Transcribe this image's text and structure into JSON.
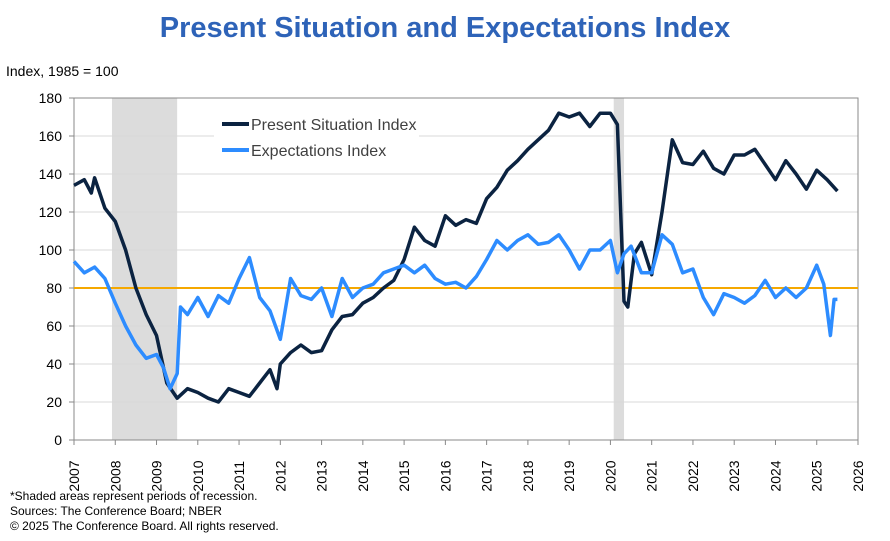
{
  "chart_data": {
    "type": "line",
    "title": "Present Situation and Expectations Index",
    "ylabel": "Index, 1985 = 100",
    "xlabel": "",
    "xlim": [
      2007,
      2026
    ],
    "ylim": [
      0,
      180
    ],
    "yticks": [
      0,
      20,
      40,
      60,
      80,
      100,
      120,
      140,
      160,
      180
    ],
    "xticks": [
      "2007",
      "2008",
      "2009",
      "2010",
      "2011",
      "2012",
      "2013",
      "2014",
      "2015",
      "2016",
      "2017",
      "2018",
      "2019",
      "2020",
      "2021",
      "2022",
      "2023",
      "2024",
      "2025",
      "2026"
    ],
    "grid": true,
    "legend_position": "top-left",
    "reference_line": {
      "value": 80,
      "color": "#f5a800"
    },
    "recessions": [
      [
        2007.92,
        2009.5
      ],
      [
        2020.08,
        2020.33
      ]
    ],
    "series": [
      {
        "name": "Present Situation Index",
        "color": "#0b2341",
        "x": [
          2007.0,
          2007.25,
          2007.42,
          2007.5,
          2007.75,
          2008.0,
          2008.25,
          2008.5,
          2008.75,
          2009.0,
          2009.25,
          2009.5,
          2009.75,
          2010.0,
          2010.25,
          2010.5,
          2010.75,
          2011.0,
          2011.25,
          2011.5,
          2011.75,
          2011.92,
          2012.0,
          2012.25,
          2012.5,
          2012.75,
          2013.0,
          2013.25,
          2013.5,
          2013.75,
          2014.0,
          2014.25,
          2014.5,
          2014.75,
          2015.0,
          2015.25,
          2015.5,
          2015.75,
          2016.0,
          2016.25,
          2016.5,
          2016.75,
          2017.0,
          2017.25,
          2017.5,
          2017.75,
          2018.0,
          2018.25,
          2018.5,
          2018.75,
          2019.0,
          2019.25,
          2019.5,
          2019.75,
          2020.0,
          2020.17,
          2020.33,
          2020.42,
          2020.58,
          2020.75,
          2021.0,
          2021.25,
          2021.5,
          2021.75,
          2022.0,
          2022.25,
          2022.5,
          2022.75,
          2023.0,
          2023.25,
          2023.5,
          2023.75,
          2024.0,
          2024.25,
          2024.5,
          2024.75,
          2025.0,
          2025.25,
          2025.5
        ],
        "values": [
          134,
          137,
          130,
          138,
          122,
          115,
          100,
          80,
          66,
          55,
          30,
          22,
          27,
          25,
          22,
          20,
          27,
          25,
          23,
          30,
          37,
          27,
          40,
          46,
          50,
          46,
          47,
          58,
          65,
          66,
          72,
          75,
          80,
          84,
          95,
          112,
          105,
          102,
          118,
          113,
          116,
          114,
          127,
          133,
          142,
          147,
          153,
          158,
          163,
          172,
          170,
          172,
          165,
          172,
          172,
          166,
          73,
          70,
          98,
          104,
          87,
          120,
          158,
          146,
          145,
          152,
          143,
          140,
          150,
          150,
          153,
          145,
          137,
          147,
          140,
          132,
          142,
          137,
          131
        ]
      },
      {
        "name": "Expectations Index",
        "color": "#2d8cff",
        "x": [
          2007.0,
          2007.25,
          2007.5,
          2007.75,
          2008.0,
          2008.25,
          2008.5,
          2008.75,
          2009.0,
          2009.17,
          2009.33,
          2009.5,
          2009.58,
          2009.75,
          2010.0,
          2010.25,
          2010.5,
          2010.75,
          2011.0,
          2011.25,
          2011.5,
          2011.75,
          2012.0,
          2012.25,
          2012.5,
          2012.75,
          2013.0,
          2013.25,
          2013.5,
          2013.75,
          2014.0,
          2014.25,
          2014.5,
          2014.75,
          2015.0,
          2015.25,
          2015.5,
          2015.75,
          2016.0,
          2016.25,
          2016.5,
          2016.75,
          2017.0,
          2017.25,
          2017.5,
          2017.75,
          2018.0,
          2018.25,
          2018.5,
          2018.75,
          2019.0,
          2019.25,
          2019.5,
          2019.75,
          2020.0,
          2020.17,
          2020.33,
          2020.5,
          2020.75,
          2021.0,
          2021.25,
          2021.5,
          2021.75,
          2022.0,
          2022.25,
          2022.5,
          2022.75,
          2023.0,
          2023.25,
          2023.5,
          2023.75,
          2024.0,
          2024.25,
          2024.5,
          2024.75,
          2025.0,
          2025.17,
          2025.33,
          2025.42,
          2025.5
        ],
        "values": [
          94,
          88,
          91,
          85,
          72,
          60,
          50,
          43,
          45,
          38,
          27,
          35,
          70,
          66,
          75,
          65,
          76,
          72,
          85,
          96,
          75,
          68,
          53,
          85,
          76,
          74,
          80,
          65,
          85,
          75,
          80,
          82,
          88,
          90,
          92,
          88,
          92,
          85,
          82,
          83,
          80,
          86,
          95,
          105,
          100,
          105,
          108,
          103,
          104,
          108,
          100,
          90,
          100,
          100,
          105,
          88,
          98,
          102,
          88,
          88,
          108,
          103,
          88,
          90,
          75,
          66,
          77,
          75,
          72,
          76,
          84,
          75,
          80,
          75,
          80,
          92,
          82,
          55,
          74,
          74
        ]
      }
    ]
  },
  "footer": {
    "note": "*Shaded areas represent periods of recession.",
    "sources": "Sources:  The Conference Board;  NBER",
    "copyright": "© 2025 The Conference Board. All rights reserved."
  }
}
